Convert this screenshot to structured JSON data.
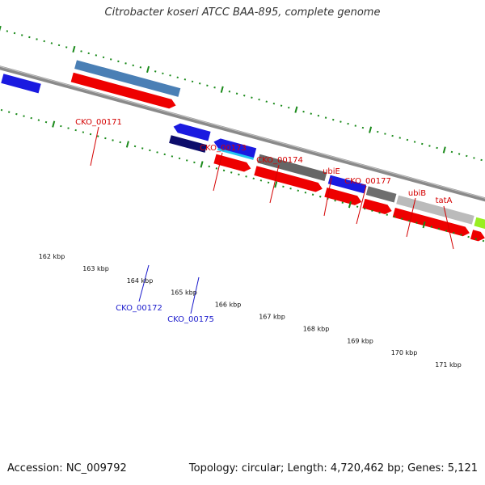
{
  "title": "Citrobacter koseri ATCC BAA-895, complete genome",
  "footer": {
    "accession": "Accession: NC_009792",
    "summary": "Topology: circular; Length: 4,720,462 bp; Genes: 5,121"
  },
  "colors": {
    "backbone": "#8a8a8a",
    "tick": "#1a8a1a",
    "forward_feature_label": "#d40000",
    "reverse_feature_label": "#1a1acc"
  },
  "scale_ticks": [
    {
      "kbp": 162,
      "label": "162 kbp"
    },
    {
      "kbp": 163,
      "label": "163 kbp"
    },
    {
      "kbp": 164,
      "label": "164 kbp"
    },
    {
      "kbp": 165,
      "label": "165 kbp"
    },
    {
      "kbp": 166,
      "label": "166 kbp"
    },
    {
      "kbp": 167,
      "label": "167 kbp"
    },
    {
      "kbp": 168,
      "label": "168 kbp"
    },
    {
      "kbp": 169,
      "label": "169 kbp"
    },
    {
      "kbp": 170,
      "label": "170 kbp"
    },
    {
      "kbp": 171,
      "label": "171 kbp"
    }
  ],
  "features": [
    {
      "name": "CKO_00171",
      "strand": "+",
      "color": "#4a7fb5"
    },
    {
      "name": "CKO_00172",
      "strand": "-",
      "color": "#0d0d6b"
    },
    {
      "name": "CKO_00173",
      "strand": "+",
      "color": "#22c4f0"
    },
    {
      "name": "CKO_00174",
      "strand": "+",
      "color": "#666666"
    },
    {
      "name": "CKO_00175",
      "strand": "-",
      "color": "#1a1ae0"
    },
    {
      "name": "ubiE",
      "strand": "+",
      "color": "#1a1ae0"
    },
    {
      "name": "CKO_00177",
      "strand": "+",
      "color": "#6e6e6e"
    },
    {
      "name": "ubiB",
      "strand": "+",
      "color": "#bbbbbb"
    },
    {
      "name": "tatA",
      "strand": "+",
      "color": "#99ee22"
    }
  ]
}
